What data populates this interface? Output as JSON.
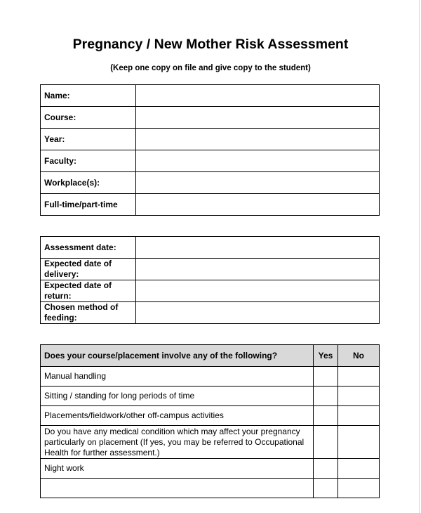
{
  "header": {
    "title": "Pregnancy / New Mother Risk Assessment",
    "subtitle": "(Keep one copy on file and give copy to the student)"
  },
  "details": {
    "rows": [
      "Name:",
      "Course:",
      "Year:",
      "Faculty:",
      "Workplace(s):",
      "Full-time/part-time"
    ]
  },
  "dates": {
    "rows": [
      "Assessment date:",
      "Expected date of delivery:",
      "Expected date of return:",
      "Chosen method of feeding:"
    ]
  },
  "checklist": {
    "header": [
      "Does your course/placement involve any of the following?",
      "Yes",
      "No"
    ],
    "rows": [
      "Manual handling",
      "Sitting / standing for long periods of time",
      "Placements/fieldwork/other off-campus activities",
      "Do you have any medical condition which may affect your pregnancy particularly on placement (If yes, you may be referred to Occupational Health for further assessment.)",
      "Night work"
    ]
  }
}
